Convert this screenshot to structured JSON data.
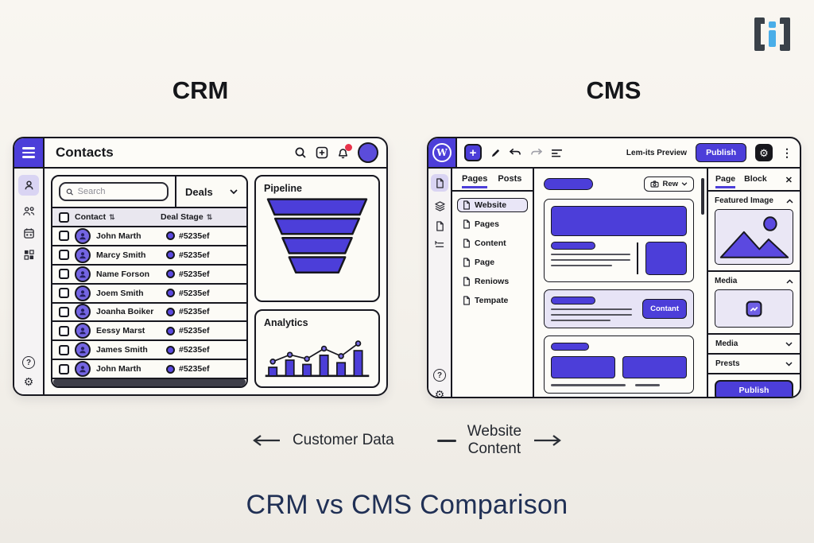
{
  "page": {
    "headline": "CRM vs CMS Comparison",
    "left_heading": "CRM",
    "right_heading": "CMS",
    "left_arrow_label": "Customer Data",
    "right_arrow_label": [
      "Website",
      "Content"
    ],
    "glyphs": {
      "help": "?",
      "gear": "⚙",
      "close": "✕",
      "kebab": "⋮",
      "sort": "⇅",
      "plus": "+"
    },
    "colors": {
      "purple": "#4c3ed9",
      "title_navy": "#203055",
      "logo_blue": "#4aaee8",
      "notification_red": "#e8334a"
    }
  },
  "crm": {
    "header": {
      "title": "Contacts"
    },
    "search": {
      "placeholder": "Search"
    },
    "filter": {
      "label": "Deals"
    },
    "table": {
      "columns": [
        "Contact",
        "Deal Stage"
      ],
      "rows": [
        {
          "name": "John Marth",
          "deal": "#5235ef"
        },
        {
          "name": "Marcy Smith",
          "deal": "#5235ef"
        },
        {
          "name": "Name Forson",
          "deal": "#5235ef"
        },
        {
          "name": "Joem Smith",
          "deal": "#5235ef"
        },
        {
          "name": "Joanha Boiker",
          "deal": "#5235ef"
        },
        {
          "name": "Eessy Marst",
          "deal": "#5235ef"
        },
        {
          "name": "James Smith",
          "deal": "#5235ef"
        },
        {
          "name": "John Marth",
          "deal": "#5235ef"
        }
      ]
    },
    "pipeline": {
      "title": "Pipeline",
      "segments": [
        148,
        126,
        104,
        84
      ]
    },
    "analytics": {
      "title": "Analytics",
      "bars": [
        30,
        55,
        40,
        72,
        46,
        88
      ],
      "line": [
        42,
        62,
        50,
        80,
        58,
        95
      ]
    }
  },
  "cms": {
    "logo_letter": "W",
    "toolbar": {
      "preview_label": "Lem-its Preview",
      "publish_label": "Publish"
    },
    "nav_tabs": [
      "Pages",
      "Posts"
    ],
    "nav_items": [
      "Website",
      "Pages",
      "Content",
      "Page",
      "Reniows",
      "Tempate"
    ],
    "content": {
      "media_dropdown_label": "Rew",
      "contact_button_label": "Contant"
    },
    "panel": {
      "tabs": [
        "Page",
        "Block"
      ],
      "sections": [
        {
          "label": "Featured Image",
          "state": "expanded"
        },
        {
          "label": "Media",
          "state": "expanded"
        },
        {
          "label": "Media",
          "state": "collapsed"
        },
        {
          "label": "Prests",
          "state": "collapsed"
        }
      ],
      "publish_label": "Publish"
    }
  }
}
